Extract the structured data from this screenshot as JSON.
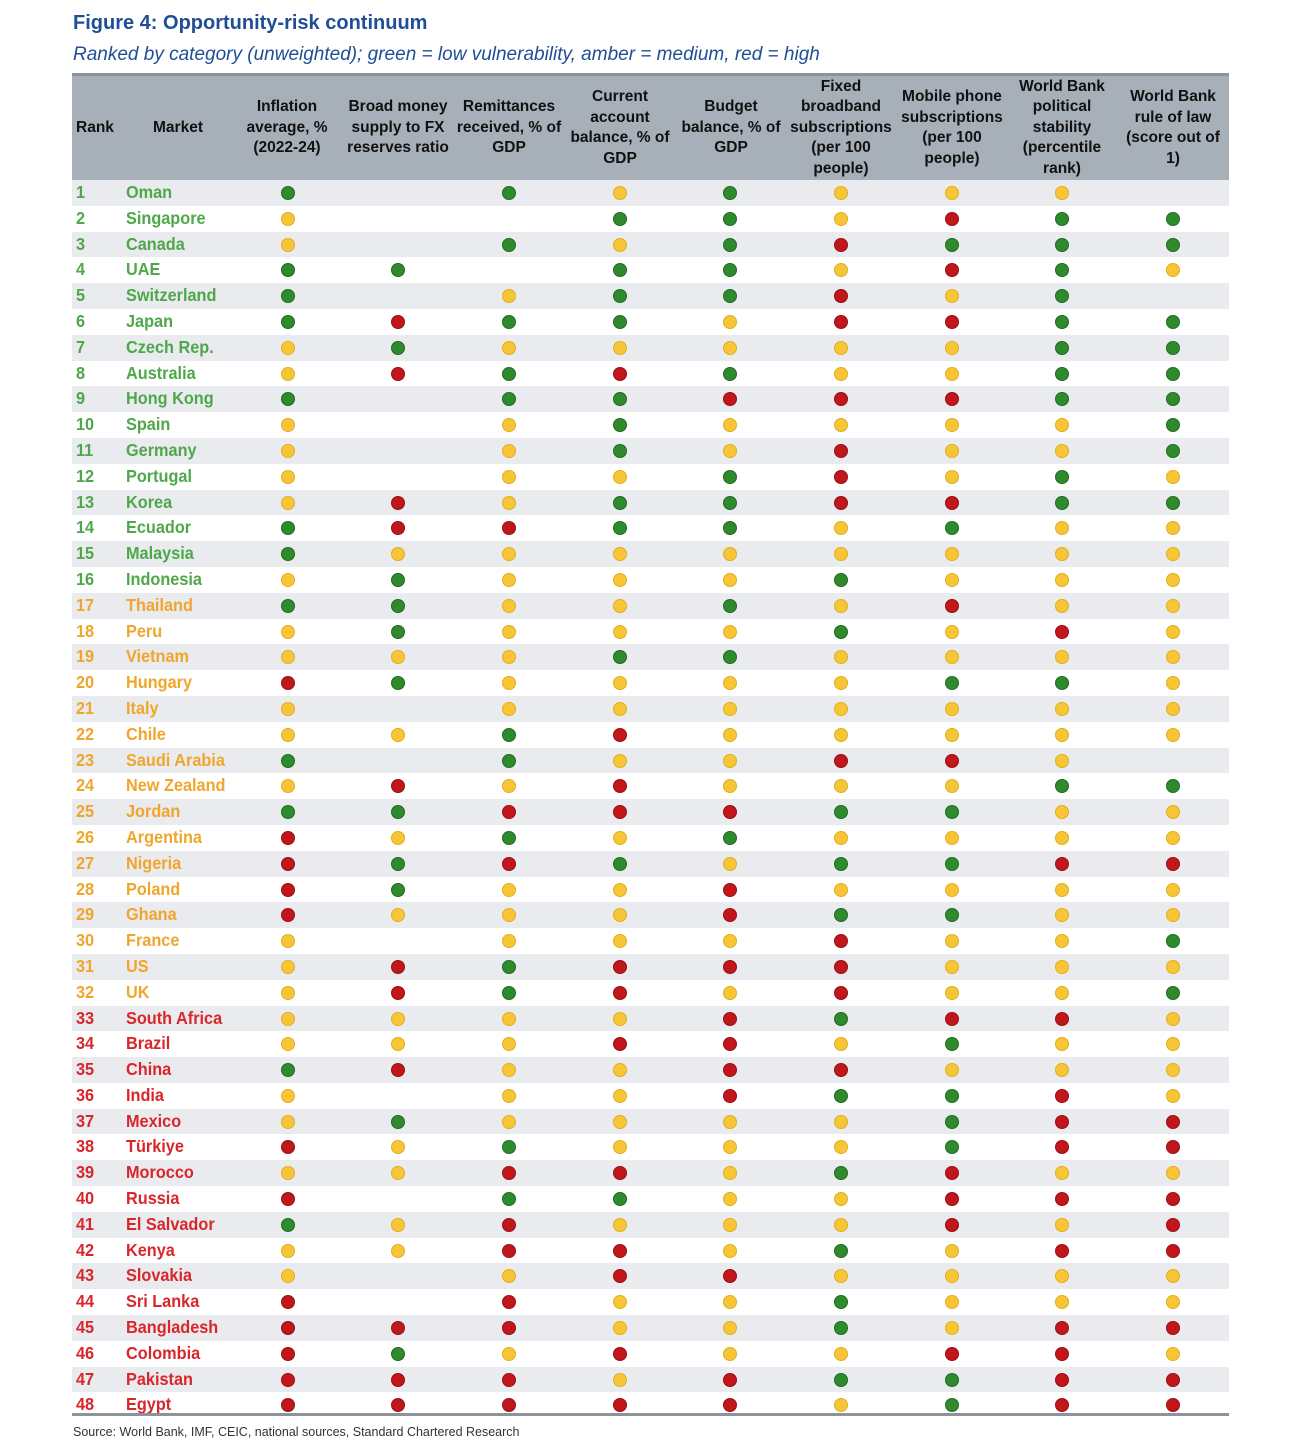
{
  "title": "Figure 4: Opportunity-risk continuum",
  "subtitle": "Ranked by category (unweighted); green = low vulnerability, amber = medium, red = high",
  "columns": [
    "Rank",
    "Market",
    "Inflation average, % (2022-24)",
    "Broad money supply to FX reserves ratio",
    "Remittances received, % of GDP",
    "Current account balance, % of GDP",
    "Budget balance, % of GDP",
    "Fixed broadband subscriptions (per 100 people)",
    "Mobile phone subscriptions (per 100 people)",
    "World Bank political stability (percentile rank)",
    "World Bank rule of law (score out of 1)"
  ],
  "legend": {
    "G": "low vulnerability",
    "A": "medium",
    "R": "high"
  },
  "colors": {
    "green": "#2f8a2e",
    "amber": "#f7c636",
    "red": "#c0161c",
    "title": "#1f4e96",
    "header_bg": "#a7afb8"
  },
  "rows": [
    {
      "rank": "1",
      "market": "Oman",
      "cat": "G",
      "v": [
        "G",
        "",
        "G",
        "A",
        "G",
        "A",
        "A",
        "A",
        ""
      ]
    },
    {
      "rank": "2",
      "market": "Singapore",
      "cat": "G",
      "v": [
        "A",
        "",
        "",
        "G",
        "G",
        "A",
        "R",
        "G",
        "G"
      ]
    },
    {
      "rank": "3",
      "market": "Canada",
      "cat": "G",
      "v": [
        "A",
        "",
        "G",
        "A",
        "G",
        "R",
        "G",
        "G",
        "G"
      ]
    },
    {
      "rank": "4",
      "market": "UAE",
      "cat": "G",
      "v": [
        "G",
        "G",
        "",
        "G",
        "G",
        "A",
        "R",
        "G",
        "A"
      ]
    },
    {
      "rank": "5",
      "market": "Switzerland",
      "cat": "G",
      "v": [
        "G",
        "",
        "A",
        "G",
        "G",
        "R",
        "A",
        "G",
        ""
      ]
    },
    {
      "rank": "6",
      "market": "Japan",
      "cat": "G",
      "v": [
        "G",
        "R",
        "G",
        "G",
        "A",
        "R",
        "R",
        "G",
        "G"
      ]
    },
    {
      "rank": "7",
      "market": "Czech Rep.",
      "cat": "G",
      "v": [
        "A",
        "G",
        "A",
        "A",
        "A",
        "A",
        "A",
        "G",
        "G"
      ]
    },
    {
      "rank": "8",
      "market": "Australia",
      "cat": "G",
      "v": [
        "A",
        "R",
        "G",
        "R",
        "G",
        "A",
        "A",
        "G",
        "G"
      ]
    },
    {
      "rank": "9",
      "market": "Hong Kong",
      "cat": "G",
      "v": [
        "G",
        "",
        "G",
        "G",
        "R",
        "R",
        "R",
        "G",
        "G"
      ]
    },
    {
      "rank": "10",
      "market": "Spain",
      "cat": "G",
      "v": [
        "A",
        "",
        "A",
        "G",
        "A",
        "A",
        "A",
        "A",
        "G"
      ]
    },
    {
      "rank": "11",
      "market": "Germany",
      "cat": "G",
      "v": [
        "A",
        "",
        "A",
        "G",
        "A",
        "R",
        "A",
        "A",
        "G"
      ]
    },
    {
      "rank": "12",
      "market": "Portugal",
      "cat": "G",
      "v": [
        "A",
        "",
        "A",
        "A",
        "G",
        "R",
        "A",
        "G",
        "A"
      ]
    },
    {
      "rank": "13",
      "market": "Korea",
      "cat": "G",
      "v": [
        "A",
        "R",
        "A",
        "G",
        "G",
        "R",
        "R",
        "G",
        "G"
      ]
    },
    {
      "rank": "14",
      "market": "Ecuador",
      "cat": "G",
      "v": [
        "G",
        "R",
        "R",
        "G",
        "G",
        "A",
        "G",
        "A",
        "A"
      ]
    },
    {
      "rank": "15",
      "market": "Malaysia",
      "cat": "G",
      "v": [
        "G",
        "A",
        "A",
        "A",
        "A",
        "A",
        "A",
        "A",
        "A"
      ]
    },
    {
      "rank": "16",
      "market": "Indonesia",
      "cat": "G",
      "v": [
        "A",
        "G",
        "A",
        "A",
        "A",
        "G",
        "A",
        "A",
        "A"
      ]
    },
    {
      "rank": "17",
      "market": "Thailand",
      "cat": "A",
      "v": [
        "G",
        "G",
        "A",
        "A",
        "G",
        "A",
        "R",
        "A",
        "A"
      ]
    },
    {
      "rank": "18",
      "market": "Peru",
      "cat": "A",
      "v": [
        "A",
        "G",
        "A",
        "A",
        "A",
        "G",
        "A",
        "R",
        "A"
      ]
    },
    {
      "rank": "19",
      "market": "Vietnam",
      "cat": "A",
      "v": [
        "A",
        "A",
        "A",
        "G",
        "G",
        "A",
        "A",
        "A",
        "A"
      ]
    },
    {
      "rank": "20",
      "market": "Hungary",
      "cat": "A",
      "v": [
        "R",
        "G",
        "A",
        "A",
        "A",
        "A",
        "G",
        "G",
        "A"
      ]
    },
    {
      "rank": "21",
      "market": "Italy",
      "cat": "A",
      "v": [
        "A",
        "",
        "A",
        "A",
        "A",
        "A",
        "A",
        "A",
        "A"
      ]
    },
    {
      "rank": "22",
      "market": "Chile",
      "cat": "A",
      "v": [
        "A",
        "A",
        "G",
        "R",
        "A",
        "A",
        "A",
        "A",
        "A"
      ]
    },
    {
      "rank": "23",
      "market": "Saudi Arabia",
      "cat": "A",
      "v": [
        "G",
        "",
        "G",
        "A",
        "A",
        "R",
        "R",
        "A",
        ""
      ]
    },
    {
      "rank": "24",
      "market": "New Zealand",
      "cat": "A",
      "v": [
        "A",
        "R",
        "A",
        "R",
        "A",
        "A",
        "A",
        "G",
        "G"
      ]
    },
    {
      "rank": "25",
      "market": "Jordan",
      "cat": "A",
      "v": [
        "G",
        "G",
        "R",
        "R",
        "R",
        "G",
        "G",
        "A",
        "A"
      ]
    },
    {
      "rank": "26",
      "market": "Argentina",
      "cat": "A",
      "v": [
        "R",
        "A",
        "G",
        "A",
        "G",
        "A",
        "A",
        "A",
        "A"
      ]
    },
    {
      "rank": "27",
      "market": "Nigeria",
      "cat": "A",
      "v": [
        "R",
        "G",
        "R",
        "G",
        "A",
        "G",
        "G",
        "R",
        "R"
      ]
    },
    {
      "rank": "28",
      "market": "Poland",
      "cat": "A",
      "v": [
        "R",
        "G",
        "A",
        "A",
        "R",
        "A",
        "A",
        "A",
        "A"
      ]
    },
    {
      "rank": "29",
      "market": "Ghana",
      "cat": "A",
      "v": [
        "R",
        "A",
        "A",
        "A",
        "R",
        "G",
        "G",
        "A",
        "A"
      ]
    },
    {
      "rank": "30",
      "market": "France",
      "cat": "A",
      "v": [
        "A",
        "",
        "A",
        "A",
        "A",
        "R",
        "A",
        "A",
        "G"
      ]
    },
    {
      "rank": "31",
      "market": "US",
      "cat": "A",
      "v": [
        "A",
        "R",
        "G",
        "R",
        "R",
        "R",
        "A",
        "A",
        "A"
      ]
    },
    {
      "rank": "32",
      "market": "UK",
      "cat": "A",
      "v": [
        "A",
        "R",
        "G",
        "R",
        "A",
        "R",
        "A",
        "A",
        "G"
      ]
    },
    {
      "rank": "33",
      "market": "South Africa",
      "cat": "R",
      "v": [
        "A",
        "A",
        "A",
        "A",
        "R",
        "G",
        "R",
        "R",
        "A"
      ]
    },
    {
      "rank": "34",
      "market": "Brazil",
      "cat": "R",
      "v": [
        "A",
        "A",
        "A",
        "R",
        "R",
        "A",
        "G",
        "A",
        "A"
      ]
    },
    {
      "rank": "35",
      "market": "China",
      "cat": "R",
      "v": [
        "G",
        "R",
        "A",
        "A",
        "R",
        "R",
        "A",
        "A",
        "A"
      ]
    },
    {
      "rank": "36",
      "market": "India",
      "cat": "R",
      "v": [
        "A",
        "",
        "A",
        "A",
        "R",
        "G",
        "G",
        "R",
        "A"
      ]
    },
    {
      "rank": "37",
      "market": "Mexico",
      "cat": "R",
      "v": [
        "A",
        "G",
        "A",
        "A",
        "A",
        "A",
        "G",
        "R",
        "R"
      ]
    },
    {
      "rank": "38",
      "market": "Türkiye",
      "cat": "R",
      "v": [
        "R",
        "A",
        "G",
        "A",
        "A",
        "A",
        "G",
        "R",
        "R"
      ]
    },
    {
      "rank": "39",
      "market": "Morocco",
      "cat": "R",
      "v": [
        "A",
        "A",
        "R",
        "R",
        "A",
        "G",
        "R",
        "A",
        "A"
      ]
    },
    {
      "rank": "40",
      "market": "Russia",
      "cat": "R",
      "v": [
        "R",
        "",
        "G",
        "G",
        "A",
        "A",
        "R",
        "R",
        "R"
      ]
    },
    {
      "rank": "41",
      "market": "El Salvador",
      "cat": "R",
      "v": [
        "G",
        "A",
        "R",
        "A",
        "A",
        "A",
        "R",
        "A",
        "R"
      ]
    },
    {
      "rank": "42",
      "market": "Kenya",
      "cat": "R",
      "v": [
        "A",
        "A",
        "R",
        "R",
        "A",
        "G",
        "A",
        "R",
        "R"
      ]
    },
    {
      "rank": "43",
      "market": "Slovakia",
      "cat": "R",
      "v": [
        "A",
        "",
        "A",
        "R",
        "R",
        "A",
        "A",
        "A",
        "A"
      ]
    },
    {
      "rank": "44",
      "market": "Sri Lanka",
      "cat": "R",
      "v": [
        "R",
        "",
        "R",
        "A",
        "A",
        "G",
        "A",
        "A",
        "A"
      ]
    },
    {
      "rank": "45",
      "market": "Bangladesh",
      "cat": "R",
      "v": [
        "R",
        "R",
        "R",
        "A",
        "A",
        "G",
        "A",
        "R",
        "R"
      ]
    },
    {
      "rank": "46",
      "market": "Colombia",
      "cat": "R",
      "v": [
        "R",
        "G",
        "A",
        "R",
        "A",
        "A",
        "R",
        "R",
        "A"
      ]
    },
    {
      "rank": "47",
      "market": "Pakistan",
      "cat": "R",
      "v": [
        "R",
        "R",
        "R",
        "A",
        "R",
        "G",
        "G",
        "R",
        "R"
      ]
    },
    {
      "rank": "48",
      "market": "Egypt",
      "cat": "R",
      "v": [
        "R",
        "R",
        "R",
        "R",
        "R",
        "A",
        "G",
        "R",
        "R"
      ]
    }
  ],
  "source": "Source: World Bank, IMF, CEIC, national sources, Standard Chartered Research"
}
